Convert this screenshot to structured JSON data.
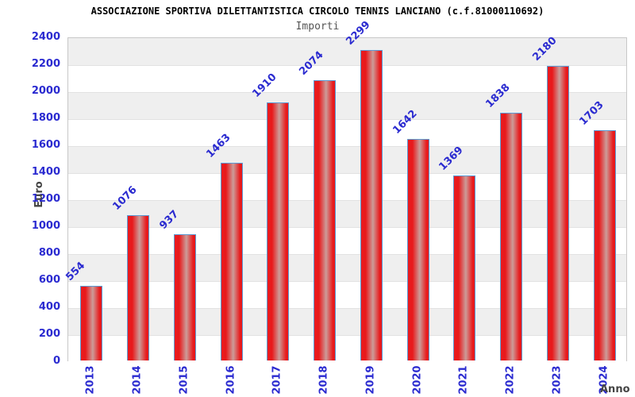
{
  "header": {
    "title": "ASSOCIAZIONE SPORTIVA DILETTANTISTICA CIRCOLO TENNIS LANCIANO (c.f.81000110692)",
    "subtitle": "Importi"
  },
  "axes": {
    "y_label": "Euro",
    "x_label": "Anno",
    "y_ticks": [
      0,
      200,
      400,
      600,
      800,
      1000,
      1200,
      1400,
      1600,
      1800,
      2000,
      2200,
      2400
    ]
  },
  "chart_data": {
    "type": "bar",
    "title": "ASSOCIAZIONE SPORTIVA DILETTANTISTICA CIRCOLO TENNIS LANCIANO (c.f.81000110692)",
    "subtitle": "Importi",
    "xlabel": "Anno",
    "ylabel": "Euro",
    "categories": [
      "2013",
      "2014",
      "2015",
      "2016",
      "2017",
      "2018",
      "2019",
      "2020",
      "2021",
      "2022",
      "2023",
      "2024"
    ],
    "values": [
      554,
      1076,
      937,
      1463,
      1910,
      2074,
      2299,
      1642,
      1369,
      1838,
      2180,
      1703
    ],
    "ylim": [
      0,
      2400
    ],
    "y_tick_step": 200,
    "grid": "alternating-horizontal-bands",
    "legend": false,
    "bar_labels_rotation_deg": -45,
    "x_labels_rotation_deg": -90
  },
  "colors": {
    "bar_red": "#e81a1c",
    "bar_highlight": "#cc9c99",
    "bar_border": "#5b9bd5",
    "label_blue": "#2a2ad0",
    "band_gray": "#efefef",
    "band_white": "#ffffff",
    "plot_border": "#c8c8c8",
    "axis_title_color": "#444444",
    "title_color": "#000000",
    "subtitle_color": "#555555"
  }
}
